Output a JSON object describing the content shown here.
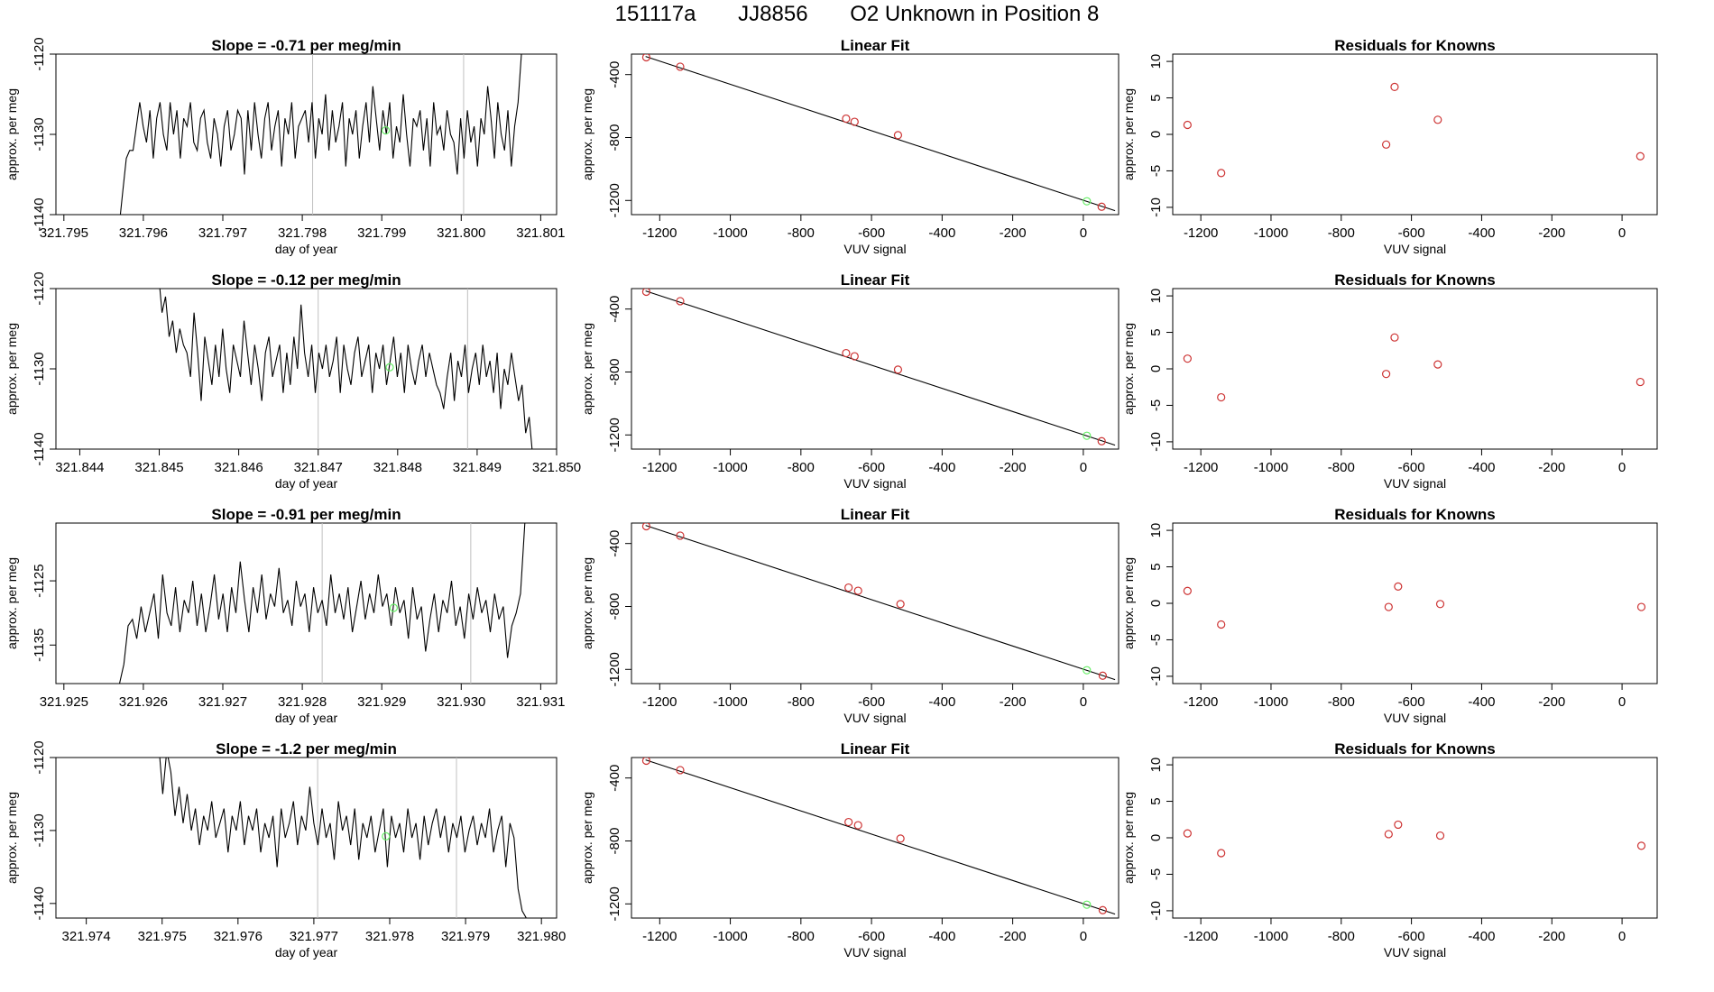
{
  "header": {
    "run_id": "151117a",
    "tank_id": "JJ8856",
    "description": "O2 Unknown in Position  8"
  },
  "colors": {
    "line": "#000000",
    "known_point": "#cd3333",
    "unknown_point": "#66ee66",
    "marker_line": "#c0c0c0"
  },
  "chart_data": [
    {
      "type": "line",
      "row": 1,
      "col": 1,
      "title": "Slope =  -0.71  per meg/min",
      "xlabel": "day of year",
      "ylabel": "approx. per meg",
      "xlim": [
        321.7949,
        321.8012
      ],
      "ylim": [
        -1140,
        -1120
      ],
      "xticks": [
        "321.795",
        "321.796",
        "321.797",
        "321.798",
        "321.799",
        "321.800",
        "321.801"
      ],
      "xtick_values": [
        321.795,
        321.796,
        321.797,
        321.798,
        321.799,
        321.8,
        321.801
      ],
      "yticks": [
        -1140,
        -1130,
        -1120
      ],
      "vlines": [
        321.79813,
        321.80003
      ],
      "x_start": 321.7957,
      "x_end": 321.8008,
      "values": [
        -1141,
        -1137,
        -1133,
        -1132,
        -1132,
        -1129,
        -1126,
        -1129,
        -1131,
        -1127,
        -1133,
        -1128,
        -1126,
        -1130,
        -1132,
        -1126,
        -1130,
        -1127,
        -1133,
        -1128,
        -1129,
        -1126,
        -1131,
        -1132,
        -1128,
        -1127,
        -1131,
        -1133,
        -1128,
        -1130,
        -1134,
        -1129,
        -1127,
        -1132,
        -1130,
        -1127,
        -1128,
        -1135,
        -1127,
        -1132,
        -1126,
        -1130,
        -1133,
        -1128,
        -1126,
        -1132,
        -1129,
        -1127,
        -1134,
        -1128,
        -1130,
        -1126,
        -1133,
        -1129,
        -1128,
        -1127,
        -1131,
        -1126,
        -1133,
        -1128,
        -1130,
        -1125,
        -1132,
        -1127,
        -1131,
        -1129,
        -1126,
        -1134,
        -1128,
        -1130,
        -1127,
        -1133,
        -1129,
        -1126,
        -1131,
        -1124,
        -1128,
        -1132,
        -1127,
        -1130,
        -1126,
        -1133,
        -1129,
        -1131,
        -1125,
        -1130,
        -1134,
        -1128,
        -1129,
        -1127,
        -1132,
        -1128,
        -1134,
        -1126,
        -1130,
        -1129,
        -1132,
        -1127,
        -1130,
        -1131,
        -1135,
        -1128,
        -1133,
        -1127,
        -1131,
        -1129,
        -1134,
        -1128,
        -1130,
        -1124,
        -1128,
        -1133,
        -1126,
        -1130,
        -1132,
        -1127,
        -1134,
        -1129,
        -1126,
        -1120,
        -1116
      ],
      "unknown_point": [
        321.79905,
        -1129.5
      ]
    },
    {
      "type": "scatter",
      "row": 1,
      "col": 2,
      "title": "Linear Fit",
      "xlabel": "VUV signal",
      "ylabel": "approx. per meg",
      "xlim": [
        -1280,
        100
      ],
      "ylim": [
        -1290,
        -270
      ],
      "xticks": [
        -1200,
        -1000,
        -800,
        -600,
        -400,
        -200,
        0
      ],
      "yticks": [
        -1200,
        -800,
        -400
      ],
      "fit_line": [
        [
          -1240,
          -285
        ],
        [
          90,
          -1265
        ]
      ],
      "known_points": [
        [
          -1238,
          -290
        ],
        [
          -1142,
          -350
        ],
        [
          -672,
          -680
        ],
        [
          -648,
          -700
        ],
        [
          -525,
          -785
        ],
        [
          52,
          -1240
        ]
      ],
      "unknown_points": [
        [
          10,
          -1205
        ]
      ]
    },
    {
      "type": "scatter",
      "row": 1,
      "col": 3,
      "title": "Residuals for Knowns",
      "xlabel": "VUV signal",
      "ylabel": "approx. per meg",
      "xlim": [
        -1280,
        100
      ],
      "ylim": [
        -11,
        11
      ],
      "xticks": [
        -1200,
        -1000,
        -800,
        -600,
        -400,
        -200,
        0
      ],
      "yticks": [
        -10,
        -5,
        0,
        5,
        10
      ],
      "known_points": [
        [
          -1238,
          1.3
        ],
        [
          -1142,
          -5.3
        ],
        [
          -672,
          -1.4
        ],
        [
          -648,
          6.5
        ],
        [
          -525,
          2.0
        ],
        [
          52,
          -3.0
        ]
      ]
    },
    {
      "type": "line",
      "row": 2,
      "col": 1,
      "title": "Slope =  -0.12  per meg/min",
      "xlabel": "day of year",
      "ylabel": "approx. per meg",
      "xlim": [
        321.8437,
        321.85
      ],
      "ylim": [
        -1140,
        -1120
      ],
      "xticks": [
        "321.844",
        "321.845",
        "321.846",
        "321.847",
        "321.848",
        "321.849",
        "321.850"
      ],
      "xtick_values": [
        321.844,
        321.845,
        321.846,
        321.847,
        321.848,
        321.849,
        321.85
      ],
      "yticks": [
        -1140,
        -1130,
        -1120
      ],
      "vlines": [
        321.847,
        321.84888
      ],
      "x_start": 321.8449,
      "x_end": 321.8497,
      "values": [
        -1116,
        -1120,
        -1118,
        -1123,
        -1121,
        -1126,
        -1124,
        -1128,
        -1125,
        -1127,
        -1128,
        -1131,
        -1123,
        -1128,
        -1134,
        -1126,
        -1129,
        -1132,
        -1127,
        -1131,
        -1125,
        -1130,
        -1133,
        -1127,
        -1129,
        -1131,
        -1124,
        -1128,
        -1132,
        -1127,
        -1130,
        -1134,
        -1128,
        -1126,
        -1131,
        -1129,
        -1127,
        -1133,
        -1128,
        -1132,
        -1126,
        -1130,
        -1122,
        -1128,
        -1131,
        -1127,
        -1133,
        -1128,
        -1130,
        -1127,
        -1131,
        -1129,
        -1126,
        -1133,
        -1127,
        -1130,
        -1132,
        -1128,
        -1126,
        -1131,
        -1129,
        -1127,
        -1133,
        -1128,
        -1130,
        -1127,
        -1132,
        -1129,
        -1126,
        -1131,
        -1128,
        -1133,
        -1127,
        -1130,
        -1132,
        -1129,
        -1127,
        -1131,
        -1128,
        -1130,
        -1132,
        -1133,
        -1135,
        -1131,
        -1128,
        -1134,
        -1129,
        -1131,
        -1127,
        -1133,
        -1130,
        -1128,
        -1132,
        -1127,
        -1131,
        -1129,
        -1133,
        -1128,
        -1135,
        -1130,
        -1132,
        -1128,
        -1131,
        -1134,
        -1132,
        -1138,
        -1136,
        -1141
      ],
      "unknown_point": [
        321.8479,
        -1129.8
      ]
    },
    {
      "type": "scatter",
      "row": 2,
      "col": 2,
      "title": "Linear Fit",
      "xlabel": "VUV signal",
      "ylabel": "approx. per meg",
      "xlim": [
        -1280,
        100
      ],
      "ylim": [
        -1290,
        -270
      ],
      "xticks": [
        -1200,
        -1000,
        -800,
        -600,
        -400,
        -200,
        0
      ],
      "yticks": [
        -1200,
        -800,
        -400
      ],
      "fit_line": [
        [
          -1240,
          -285
        ],
        [
          90,
          -1265
        ]
      ],
      "known_points": [
        [
          -1238,
          -290
        ],
        [
          -1142,
          -350
        ],
        [
          -672,
          -680
        ],
        [
          -648,
          -700
        ],
        [
          -525,
          -785
        ],
        [
          52,
          -1240
        ]
      ],
      "unknown_points": [
        [
          10,
          -1205
        ]
      ]
    },
    {
      "type": "scatter",
      "row": 2,
      "col": 3,
      "title": "Residuals for Knowns",
      "xlabel": "VUV signal",
      "ylabel": "approx. per meg",
      "xlim": [
        -1280,
        100
      ],
      "ylim": [
        -11,
        11
      ],
      "xticks": [
        -1200,
        -1000,
        -800,
        -600,
        -400,
        -200,
        0
      ],
      "yticks": [
        -10,
        -5,
        0,
        5,
        10
      ],
      "known_points": [
        [
          -1238,
          1.4
        ],
        [
          -1142,
          -3.9
        ],
        [
          -672,
          -0.7
        ],
        [
          -648,
          4.3
        ],
        [
          -525,
          0.6
        ],
        [
          52,
          -1.8
        ]
      ]
    },
    {
      "type": "line",
      "row": 3,
      "col": 1,
      "title": "Slope =  -0.91  per meg/min",
      "xlabel": "day of year",
      "ylabel": "approx. per meg",
      "xlim": [
        321.9249,
        321.9312
      ],
      "ylim": [
        -1141,
        -1116
      ],
      "xticks": [
        "321.925",
        "321.926",
        "321.927",
        "321.928",
        "321.929",
        "321.930",
        "321.931"
      ],
      "xtick_values": [
        321.925,
        321.926,
        321.927,
        321.928,
        321.929,
        321.93,
        321.931
      ],
      "yticks": [
        -1135,
        -1125
      ],
      "vlines": [
        321.92825,
        321.93012
      ],
      "x_start": 321.9257,
      "x_end": 321.9308,
      "values": [
        -1141,
        -1138,
        -1132,
        -1131,
        -1134,
        -1129,
        -1133,
        -1130,
        -1127,
        -1134,
        -1124,
        -1130,
        -1132,
        -1126,
        -1133,
        -1128,
        -1130,
        -1125,
        -1132,
        -1127,
        -1133,
        -1129,
        -1124,
        -1131,
        -1127,
        -1133,
        -1126,
        -1130,
        -1122,
        -1128,
        -1133,
        -1126,
        -1130,
        -1124,
        -1131,
        -1127,
        -1129,
        -1123,
        -1130,
        -1128,
        -1132,
        -1125,
        -1129,
        -1127,
        -1133,
        -1126,
        -1130,
        -1128,
        -1132,
        -1124,
        -1130,
        -1127,
        -1131,
        -1126,
        -1133,
        -1129,
        -1125,
        -1131,
        -1127,
        -1130,
        -1124,
        -1129,
        -1127,
        -1132,
        -1126,
        -1130,
        -1128,
        -1134,
        -1126,
        -1131,
        -1129,
        -1136,
        -1131,
        -1127,
        -1133,
        -1128,
        -1130,
        -1125,
        -1132,
        -1129,
        -1134,
        -1127,
        -1131,
        -1126,
        -1130,
        -1128,
        -1133,
        -1127,
        -1131,
        -1129,
        -1137,
        -1132,
        -1130,
        -1127,
        -1116
      ],
      "unknown_point": [
        321.92915,
        -1129.2
      ]
    },
    {
      "type": "scatter",
      "row": 3,
      "col": 2,
      "title": "Linear Fit",
      "xlabel": "VUV signal",
      "ylabel": "approx. per meg",
      "xlim": [
        -1280,
        100
      ],
      "ylim": [
        -1290,
        -270
      ],
      "xticks": [
        -1200,
        -1000,
        -800,
        -600,
        -400,
        -200,
        0
      ],
      "yticks": [
        -1200,
        -800,
        -400
      ],
      "fit_line": [
        [
          -1240,
          -285
        ],
        [
          90,
          -1265
        ]
      ],
      "known_points": [
        [
          -1238,
          -290
        ],
        [
          -1142,
          -350
        ],
        [
          -665,
          -680
        ],
        [
          -638,
          -700
        ],
        [
          -518,
          -785
        ],
        [
          55,
          -1240
        ]
      ],
      "unknown_points": [
        [
          10,
          -1205
        ]
      ]
    },
    {
      "type": "scatter",
      "row": 3,
      "col": 3,
      "title": "Residuals for Knowns",
      "xlabel": "VUV signal",
      "ylabel": "approx. per meg",
      "xlim": [
        -1280,
        100
      ],
      "ylim": [
        -11,
        11
      ],
      "xticks": [
        -1200,
        -1000,
        -800,
        -600,
        -400,
        -200,
        0
      ],
      "yticks": [
        -10,
        -5,
        0,
        5,
        10
      ],
      "known_points": [
        [
          -1238,
          1.7
        ],
        [
          -1142,
          -2.9
        ],
        [
          -665,
          -0.5
        ],
        [
          -638,
          2.3
        ],
        [
          -518,
          -0.1
        ],
        [
          55,
          -0.5
        ]
      ]
    },
    {
      "type": "line",
      "row": 4,
      "col": 1,
      "title": "Slope =  -1.2  per meg/min",
      "xlabel": "day of year",
      "ylabel": "approx. per meg",
      "xlim": [
        321.9736,
        321.9802
      ],
      "ylim": [
        -1142,
        -1120
      ],
      "xticks": [
        "321.974",
        "321.975",
        "321.976",
        "321.977",
        "321.978",
        "321.979",
        "321.980"
      ],
      "xtick_values": [
        321.974,
        321.975,
        321.976,
        321.977,
        321.978,
        321.979,
        321.98
      ],
      "yticks": [
        -1140,
        -1130,
        -1120
      ],
      "vlines": [
        321.97705,
        321.97888
      ],
      "x_start": 321.9749,
      "x_end": 321.9798,
      "values": [
        -1115,
        -1118,
        -1125,
        -1119,
        -1122,
        -1128,
        -1124,
        -1129,
        -1125,
        -1130,
        -1127,
        -1132,
        -1128,
        -1130,
        -1126,
        -1131,
        -1129,
        -1127,
        -1133,
        -1128,
        -1130,
        -1126,
        -1132,
        -1128,
        -1130,
        -1127,
        -1133,
        -1129,
        -1131,
        -1128,
        -1135,
        -1127,
        -1131,
        -1129,
        -1126,
        -1132,
        -1128,
        -1130,
        -1124,
        -1129,
        -1132,
        -1127,
        -1131,
        -1129,
        -1134,
        -1126,
        -1130,
        -1128,
        -1132,
        -1127,
        -1134,
        -1129,
        -1131,
        -1128,
        -1133,
        -1130,
        -1127,
        -1135,
        -1128,
        -1131,
        -1129,
        -1133,
        -1127,
        -1131,
        -1129,
        -1134,
        -1128,
        -1132,
        -1129,
        -1127,
        -1131,
        -1128,
        -1133,
        -1129,
        -1131,
        -1128,
        -1133,
        -1130,
        -1128,
        -1132,
        -1129,
        -1131,
        -1127,
        -1133,
        -1130,
        -1128,
        -1135,
        -1129,
        -1131,
        -1138,
        -1141,
        -1142
      ],
      "unknown_point": [
        321.97795,
        -1130.8
      ]
    },
    {
      "type": "scatter",
      "row": 4,
      "col": 2,
      "title": "Linear Fit",
      "xlabel": "VUV signal",
      "ylabel": "approx. per meg",
      "xlim": [
        -1280,
        100
      ],
      "ylim": [
        -1290,
        -270
      ],
      "xticks": [
        -1200,
        -1000,
        -800,
        -600,
        -400,
        -200,
        0
      ],
      "yticks": [
        -1200,
        -800,
        -400
      ],
      "fit_line": [
        [
          -1240,
          -285
        ],
        [
          90,
          -1265
        ]
      ],
      "known_points": [
        [
          -1238,
          -290
        ],
        [
          -1142,
          -350
        ],
        [
          -665,
          -680
        ],
        [
          -638,
          -700
        ],
        [
          -518,
          -785
        ],
        [
          55,
          -1240
        ]
      ],
      "unknown_points": [
        [
          10,
          -1205
        ]
      ]
    },
    {
      "type": "scatter",
      "row": 4,
      "col": 3,
      "title": "Residuals for Knowns",
      "xlabel": "VUV signal",
      "ylabel": "approx. per meg",
      "xlim": [
        -1280,
        100
      ],
      "ylim": [
        -11,
        11
      ],
      "xticks": [
        -1200,
        -1000,
        -800,
        -600,
        -400,
        -200,
        0
      ],
      "yticks": [
        -10,
        -5,
        0,
        5,
        10
      ],
      "known_points": [
        [
          -1238,
          0.6
        ],
        [
          -1142,
          -2.1
        ],
        [
          -665,
          0.5
        ],
        [
          -638,
          1.8
        ],
        [
          -518,
          0.3
        ],
        [
          55,
          -1.1
        ]
      ]
    }
  ]
}
